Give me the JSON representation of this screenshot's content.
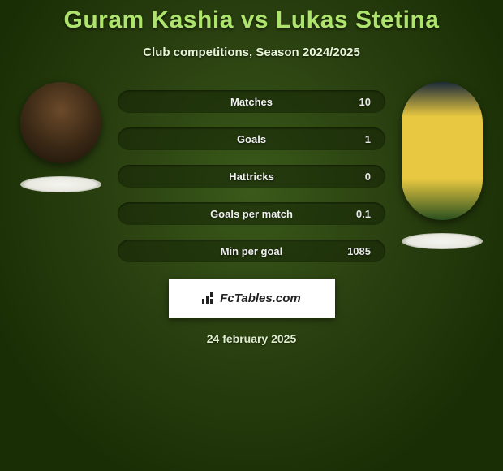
{
  "title": "Guram Kashia vs Lukas Stetina",
  "subtitle": "Club competitions, Season 2024/2025",
  "date": "24 february 2025",
  "logo_text": "FcTables.com",
  "colors": {
    "title": "#aee36e",
    "background_dark": "#1a2e05",
    "background_mid": "#2a4010",
    "background_light": "#3a5a1a",
    "row_bg": "rgba(20,35,5,.55)",
    "text_light": "#e8f5d8"
  },
  "stats": [
    {
      "label": "Matches",
      "p1": "",
      "p2": "10"
    },
    {
      "label": "Goals",
      "p1": "",
      "p2": "1"
    },
    {
      "label": "Hattricks",
      "p1": "",
      "p2": "0"
    },
    {
      "label": "Goals per match",
      "p1": "",
      "p2": "0.1"
    },
    {
      "label": "Min per goal",
      "p1": "",
      "p2": "1085"
    }
  ],
  "players": {
    "p1": {
      "name": "Guram Kashia"
    },
    "p2": {
      "name": "Lukas Stetina"
    }
  }
}
